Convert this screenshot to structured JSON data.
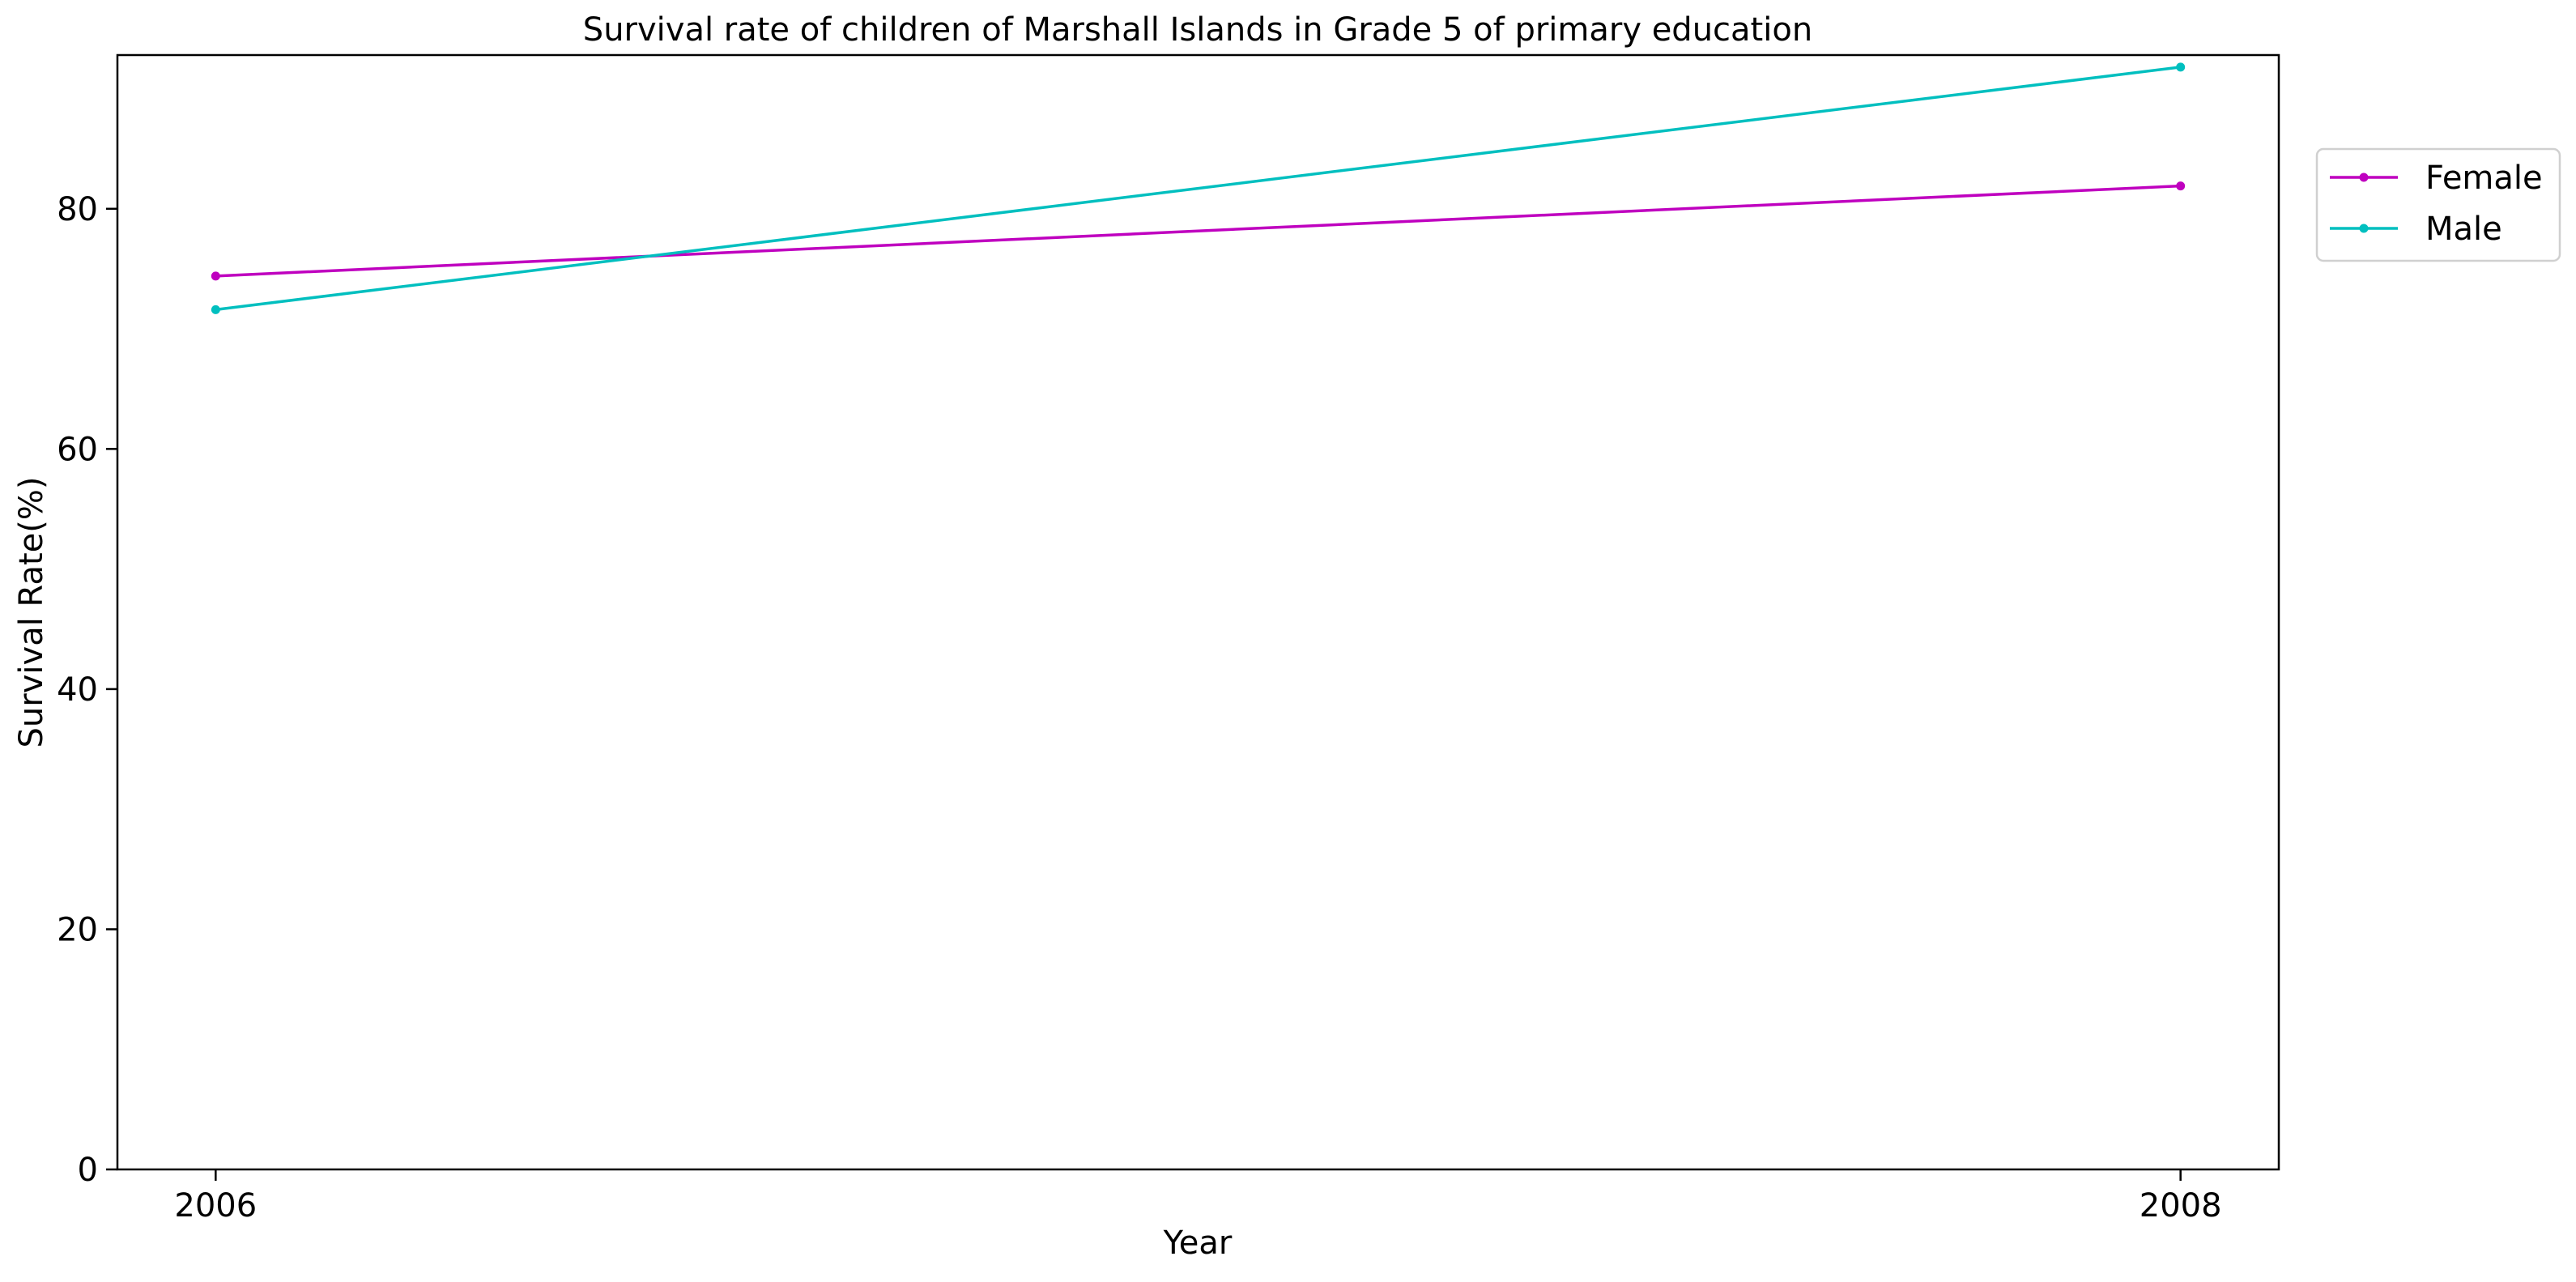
{
  "chart_data": {
    "type": "line",
    "title": "Survival rate of children of Marshall Islands in Grade 5 of primary education",
    "xlabel": "Year",
    "ylabel": "Survival Rate(%)",
    "x": [
      2006,
      2008
    ],
    "x_ticks": [
      "2006",
      "2008"
    ],
    "y_ticks": [
      "0",
      "20",
      "40",
      "60",
      "80"
    ],
    "ylim": [
      0,
      92.8
    ],
    "xlim": [
      2005.9,
      2008.1
    ],
    "grid": false,
    "legend_position": "upper right, outside plot",
    "series": [
      {
        "name": "Female",
        "color": "#bf00bf",
        "values": [
          74.4,
          81.9
        ]
      },
      {
        "name": "Male",
        "color": "#00bfbf",
        "values": [
          71.6,
          91.8
        ]
      }
    ]
  }
}
